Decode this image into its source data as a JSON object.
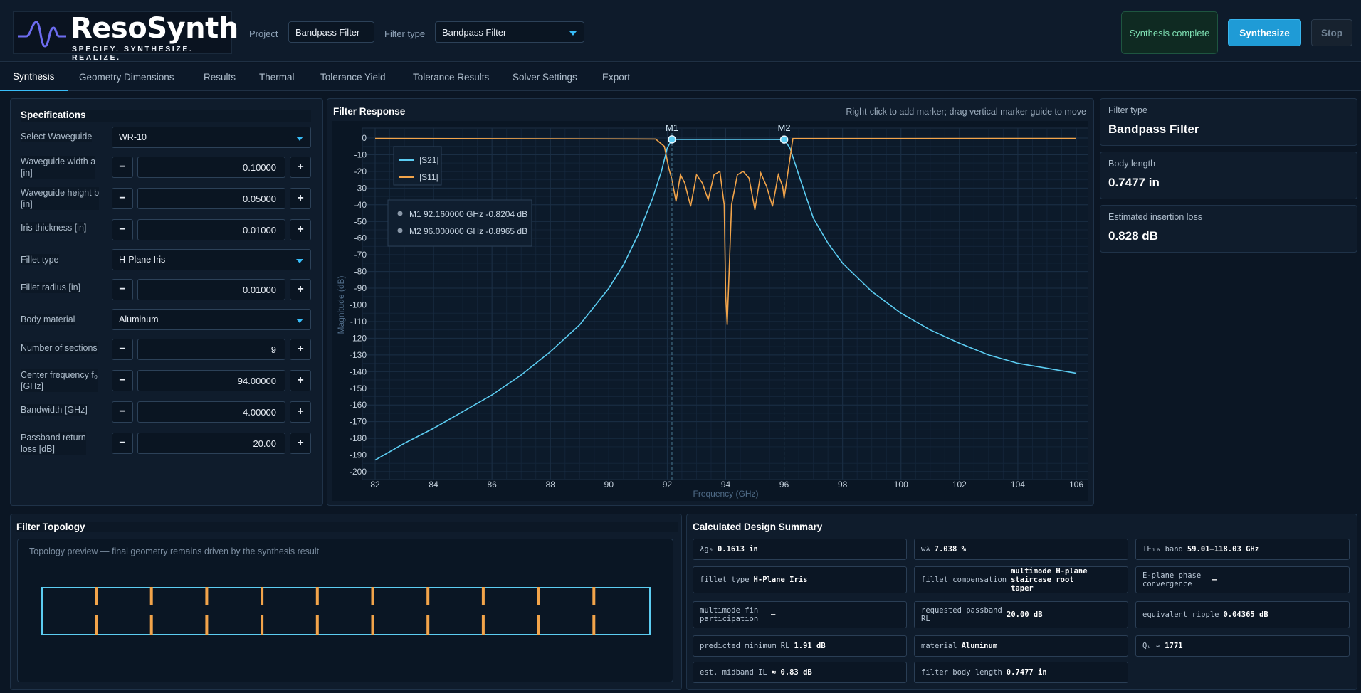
{
  "app": {
    "brand": "ResoSynth",
    "tagline": "SPECIFY. SYNTHESIZE. REALIZE.",
    "project_label": "Project",
    "project_value": "Bandpass Filter",
    "filter_type_label": "Filter type",
    "filter_type_value": "Bandpass Filter",
    "status": "Synthesis complete",
    "synthesize_label": "Synthesize",
    "stop_label": "Stop",
    "accent": "#38bdf8",
    "s21_color": "#5ccdf2",
    "s11_color": "#f2a44a"
  },
  "tabs": [
    "Synthesis",
    "Geometry  Dimensions",
    "Results",
    "Thermal",
    "Tolerance  Yield",
    "Tolerance Results",
    "Solver Settings",
    "Export"
  ],
  "specs": {
    "title": "Specifications",
    "waveguide_label": "Select Waveguide",
    "waveguide_value": "WR-10",
    "width_label_1": "Waveguide width a",
    "width_label_2": "[in]",
    "width_value": "0.10000",
    "height_label_1": "Waveguide height b",
    "height_label_2": "[in]",
    "height_value": "0.05000",
    "iris_label": "Iris thickness  [in]",
    "iris_value": "0.01000",
    "fillet_type_label": "Fillet type",
    "fillet_type_value": "H-Plane Iris",
    "fillet_radius_label": "Fillet radius  [in]",
    "fillet_radius_value": "0.01000",
    "material_label": "Body material",
    "material_value": "Aluminum",
    "sections_label": "Number of sections",
    "sections_value": "9",
    "center_label_1": "Center frequency f₀",
    "center_label_2": "[GHz]",
    "center_value": "94.00000",
    "bw_label": "Bandwidth  [GHz]",
    "bw_value": "4.00000",
    "rl_label_1": "Passband return",
    "rl_label_2": "loss  [dB]",
    "rl_value": "20.00",
    "minus": "−",
    "plus": "+"
  },
  "response": {
    "title": "Filter Response",
    "hint": "Right-click to add marker; drag vertical marker guide to move",
    "marker1": "M1 92.160000 GHz -0.8204 dB",
    "marker2": "M2 96.000000 GHz -0.8965 dB",
    "m1_tag": "M1",
    "m2_tag": "M2"
  },
  "chart_data": {
    "type": "line",
    "xlabel": "Frequency (GHz)",
    "ylabel": "Magnitude (dB)",
    "xlim": [
      82,
      106
    ],
    "ylim": [
      -200,
      0
    ],
    "xticks": [
      82,
      84,
      86,
      88,
      90,
      92,
      94,
      96,
      98,
      100,
      102,
      104,
      106
    ],
    "yticks": [
      0,
      -10,
      -20,
      -30,
      -40,
      -50,
      -60,
      -70,
      -80,
      -90,
      -100,
      -110,
      -120,
      -130,
      -140,
      -150,
      -160,
      -170,
      -180,
      -190,
      -200
    ],
    "grid": true,
    "legend_position": "top-left",
    "markers": [
      {
        "name": "M1",
        "x": 92.16,
        "y": -0.8204
      },
      {
        "name": "M2",
        "x": 96.0,
        "y": -0.8965
      }
    ],
    "series": [
      {
        "name": "|S21|",
        "x": [
          82,
          83,
          84,
          85,
          86,
          87,
          88,
          89,
          90,
          90.5,
          91,
          91.5,
          91.8,
          92,
          92.16,
          93,
          94,
          95,
          96,
          96.2,
          96.5,
          97,
          97.5,
          98,
          99,
          100,
          101,
          102,
          103,
          104,
          105,
          106
        ],
        "y": [
          -193,
          -183,
          -174,
          -164,
          -154,
          -142,
          -128,
          -112,
          -90,
          -76,
          -58,
          -36,
          -20,
          -6,
          -0.82,
          -0.8,
          -0.8,
          -0.8,
          -0.9,
          -6,
          -22,
          -48,
          -63,
          -75,
          -92,
          -105,
          -115,
          -123,
          -130,
          -135,
          -138,
          -141
        ]
      },
      {
        "name": "|S11|",
        "x": [
          82,
          91.6,
          91.9,
          92.05,
          92.16,
          92.3,
          92.45,
          92.6,
          92.8,
          93.0,
          93.2,
          93.4,
          93.6,
          93.8,
          93.95,
          94.0,
          94.05,
          94.2,
          94.4,
          94.6,
          94.8,
          95.0,
          95.2,
          95.4,
          95.6,
          95.8,
          95.95,
          96.0,
          96.3,
          106
        ],
        "y": [
          -0.2,
          -0.6,
          -5,
          -18,
          -25,
          -38,
          -22,
          -27,
          -41,
          -22,
          -27,
          -37,
          -22,
          -20,
          -40,
          -95,
          -112,
          -40,
          -22,
          -20,
          -24,
          -43,
          -21,
          -29,
          -41,
          -22,
          -29,
          -36,
          -0.3,
          -0.2
        ]
      }
    ]
  },
  "summary_cards": [
    {
      "label": "Filter type",
      "value": "Bandpass Filter"
    },
    {
      "label": "Body length",
      "value": "0.7477 in"
    },
    {
      "label": "Estimated insertion loss",
      "value": "0.828 dB"
    }
  ],
  "topology": {
    "title": "Filter Topology",
    "caption": "Topology preview — final geometry remains driven by the synthesis result",
    "iris_count": 10
  },
  "design_summary": {
    "title": "Calculated Design Summary",
    "cells": [
      {
        "label": "λg₀",
        "value": "0.1613 in"
      },
      {
        "label": "wλ",
        "value": "7.038 %"
      },
      {
        "label": "TE₁₀ band",
        "value": "59.01–118.03 GHz"
      },
      {
        "label": "fillet type",
        "value": "H-Plane Iris"
      },
      {
        "label": "fillet compensation",
        "value": "multimode H-plane staircase root taper"
      },
      {
        "label": "E-plane phase convergence",
        "value": "—"
      },
      {
        "label": "multimode fin participation",
        "value": "—"
      },
      {
        "label": "requested passband RL",
        "value": "20.00 dB"
      },
      {
        "label": "equivalent ripple",
        "value": "0.04365 dB"
      },
      {
        "label": "predicted minimum RL",
        "value": "1.91 dB"
      },
      {
        "label": "material",
        "value": "Aluminum"
      },
      {
        "label": "Qᵤ ≈",
        "value": "1771"
      },
      {
        "label": "est. midband IL",
        "value": "≈ 0.83 dB"
      },
      {
        "label": "filter body length",
        "value": "0.7477 in"
      }
    ]
  }
}
